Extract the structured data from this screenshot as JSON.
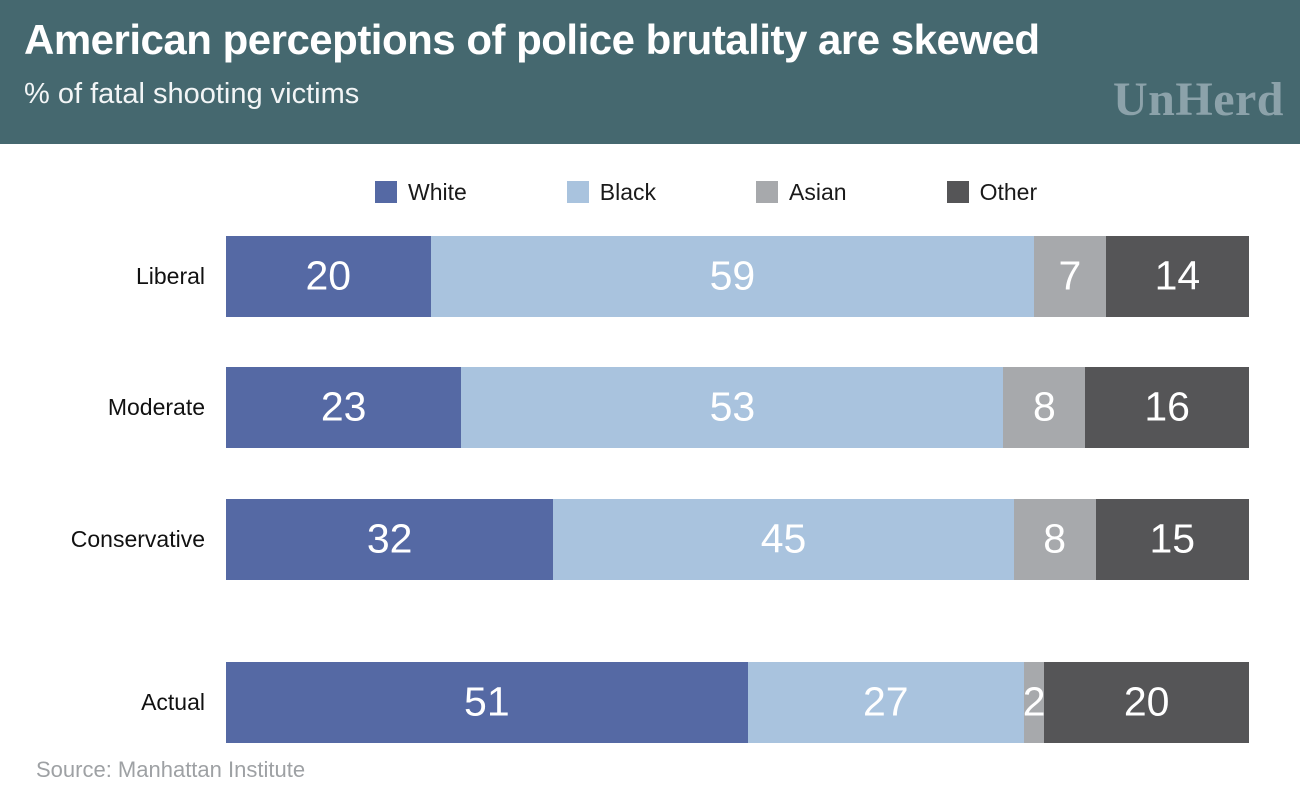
{
  "header": {
    "title": "American perceptions of police brutality are skewed",
    "subtitle": "% of fatal shooting victims",
    "logo": "UnHerd",
    "background": "#45686F",
    "logo_color": "#8CA2AA"
  },
  "chart_data": {
    "type": "bar",
    "orientation": "horizontal",
    "stacked": true,
    "title": "American perceptions of police brutality are skewed",
    "subtitle": "% of fatal shooting victims",
    "xlabel": "",
    "ylabel": "",
    "xlim": [
      0,
      100
    ],
    "unit": "percent",
    "grid": false,
    "legend_position": "top",
    "value_labels": "inside-white",
    "categories": [
      "Liberal",
      "Moderate",
      "Conservative",
      "Actual"
    ],
    "series": [
      {
        "name": "White",
        "color": "#5569A4",
        "values": [
          20,
          23,
          32,
          51
        ]
      },
      {
        "name": "Black",
        "color": "#A9C3DE",
        "values": [
          59,
          53,
          45,
          27
        ]
      },
      {
        "name": "Asian",
        "color": "#A7A9AC",
        "values": [
          7,
          8,
          8,
          2
        ]
      },
      {
        "name": "Other",
        "color": "#555557",
        "values": [
          14,
          16,
          15,
          20
        ]
      }
    ]
  },
  "source": "Source: Manhattan Institute"
}
